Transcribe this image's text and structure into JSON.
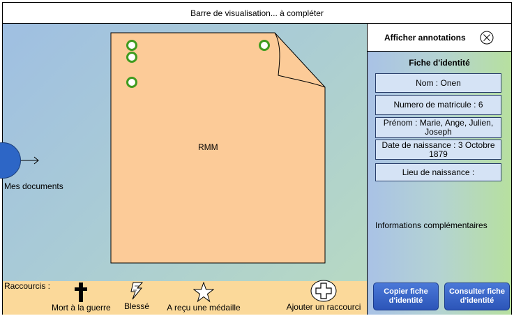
{
  "title_bar": {
    "text": "Barre de visualisation... à compléter"
  },
  "workspace": {
    "mes_documents_label": "Mes documents",
    "document_label": "RMM"
  },
  "shortcuts": {
    "title": "Raccourcis :",
    "items": [
      {
        "label": "Mort à la guerre",
        "icon": "cross-icon"
      },
      {
        "label": "Blessé",
        "icon": "lightning-icon"
      },
      {
        "label": "A reçu une médaille",
        "icon": "star-icon"
      },
      {
        "label": "Ajouter un raccourci",
        "icon": "add-cross-icon"
      }
    ]
  },
  "panel": {
    "annotations_label": "Afficher annotations",
    "fiche_title": "Fiche d'identité",
    "fields": {
      "nom": "Nom : Onen",
      "matricule": "Numero de matricule : 6",
      "prenom": "Prénom : Marie, Ange, Julien, Joseph",
      "date_naissance": "Date de naissance : 3 Octobre 1879",
      "lieu_naissance": "Lieu de naissance :"
    },
    "info_complementaires": "Informations complémentaires",
    "buttons": {
      "copier": "Copier fiche d'identité",
      "consulter": "Consulter fiche d'identité"
    }
  },
  "colors": {
    "document_fill": "#fccb98",
    "shortcut_bar": "#fbd99a",
    "button_blue": "#2c55b8",
    "ring_green": "#3f9b1f",
    "circle_blue": "#2d66c6"
  }
}
